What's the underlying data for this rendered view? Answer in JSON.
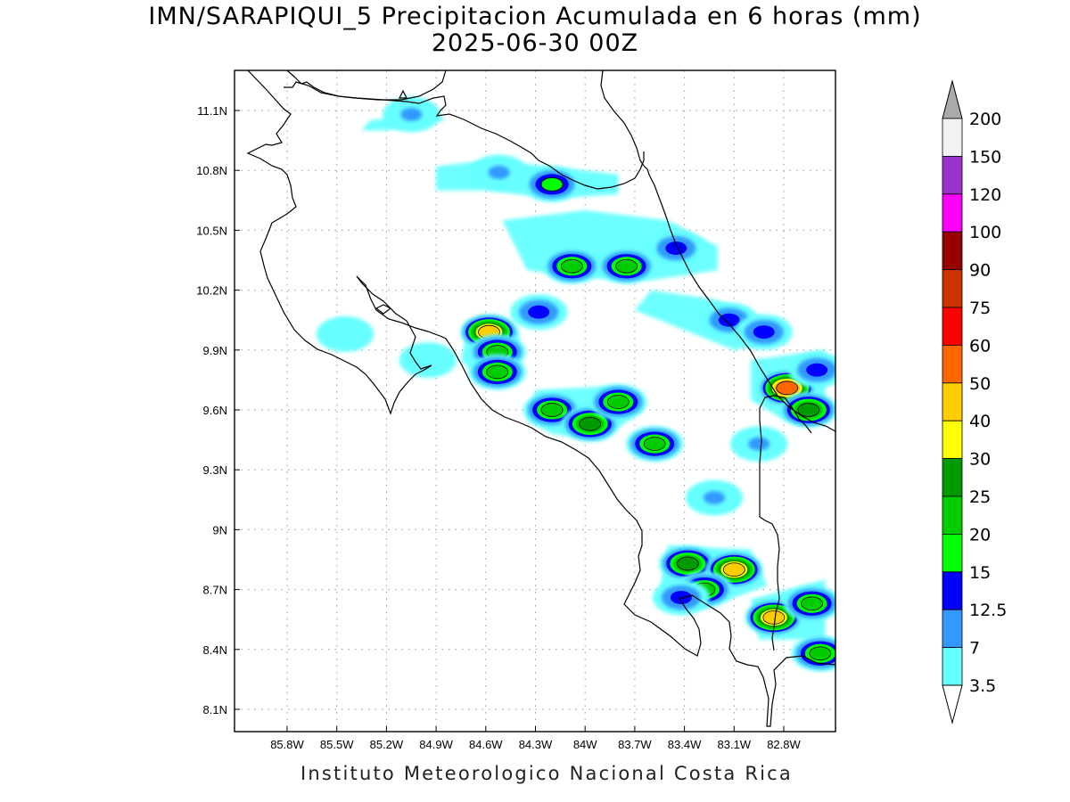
{
  "title": {
    "line1": "IMN/SARAPIQUI_5 Precipitacion Acumulada en 6 horas (mm)",
    "line2": "2025-06-30 00Z"
  },
  "footer": "Instituto Meteorologico Nacional Costa Rica",
  "map": {
    "lon_range": [
      -86.07,
      -82.53
    ],
    "lat_range": [
      8.0,
      11.3
    ],
    "lon_ticks": [
      "85.8W",
      "85.5W",
      "85.2W",
      "84.9W",
      "84.6W",
      "84.3W",
      "84W",
      "83.7W",
      "83.4W",
      "83.1W",
      "82.8W"
    ],
    "lat_ticks": [
      "11.1N",
      "10.8N",
      "10.5N",
      "10.2N",
      "9.9N",
      "9.6N",
      "9.3N",
      "9N",
      "8.7N",
      "8.4N",
      "8.1N"
    ],
    "grid": "dotted"
  },
  "colorbar": {
    "labels": [
      "200",
      "150",
      "120",
      "100",
      "90",
      "75",
      "60",
      "50",
      "40",
      "30",
      "25",
      "20",
      "15",
      "12.5",
      "7",
      "3.5"
    ],
    "colors": [
      "#f2f2f2",
      "#9933cc",
      "#ff00ff",
      "#990000",
      "#cc3300",
      "#ff0000",
      "#ff6600",
      "#ffcc00",
      "#ffff00",
      "#009900",
      "#00cc00",
      "#00ff00",
      "#0000ff",
      "#3399ff",
      "#66ffff"
    ],
    "top_cap_color": "#aaaaaa",
    "bottom_cap_color": "#ffffff"
  },
  "precip_cells": [
    {
      "lon": -85.05,
      "lat": 11.08,
      "level": "7"
    },
    {
      "lon": -84.2,
      "lat": 10.73,
      "level": "15"
    },
    {
      "lon": -84.52,
      "lat": 10.79,
      "level": "7"
    },
    {
      "lon": -84.08,
      "lat": 10.32,
      "level": "20"
    },
    {
      "lon": -83.75,
      "lat": 10.32,
      "level": "20"
    },
    {
      "lon": -83.45,
      "lat": 10.41,
      "level": "12.5"
    },
    {
      "lon": -83.13,
      "lat": 10.05,
      "level": "12.5"
    },
    {
      "lon": -82.92,
      "lat": 9.99,
      "level": "12.5"
    },
    {
      "lon": -84.58,
      "lat": 9.99,
      "level": "40"
    },
    {
      "lon": -84.53,
      "lat": 9.89,
      "level": "20"
    },
    {
      "lon": -84.53,
      "lat": 9.79,
      "level": "20"
    },
    {
      "lon": -84.28,
      "lat": 10.09,
      "level": "12.5"
    },
    {
      "lon": -84.2,
      "lat": 9.6,
      "level": "20"
    },
    {
      "lon": -83.97,
      "lat": 9.53,
      "level": "25"
    },
    {
      "lon": -83.8,
      "lat": 9.64,
      "level": "20"
    },
    {
      "lon": -83.58,
      "lat": 9.43,
      "level": "20"
    },
    {
      "lon": -82.78,
      "lat": 9.71,
      "level": "50"
    },
    {
      "lon": -82.6,
      "lat": 9.8,
      "level": "12.5"
    },
    {
      "lon": -82.65,
      "lat": 9.6,
      "level": "25"
    },
    {
      "lon": -83.38,
      "lat": 8.83,
      "level": "25"
    },
    {
      "lon": -83.1,
      "lat": 8.8,
      "level": "40"
    },
    {
      "lon": -83.28,
      "lat": 8.7,
      "level": "20"
    },
    {
      "lon": -83.42,
      "lat": 8.66,
      "level": "12.5"
    },
    {
      "lon": -82.86,
      "lat": 8.56,
      "level": "40"
    },
    {
      "lon": -82.63,
      "lat": 8.63,
      "level": "20"
    },
    {
      "lon": -82.58,
      "lat": 8.38,
      "level": "20"
    },
    {
      "lon": -83.22,
      "lat": 9.16,
      "level": "7"
    },
    {
      "lon": -82.95,
      "lat": 9.43,
      "level": "7"
    },
    {
      "lon": -85.45,
      "lat": 9.98,
      "level": "3.5"
    },
    {
      "lon": -84.95,
      "lat": 9.85,
      "level": "3.5"
    }
  ]
}
